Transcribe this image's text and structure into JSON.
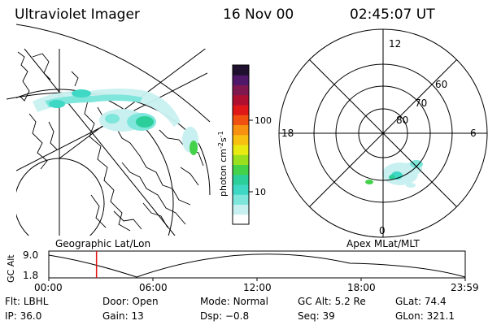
{
  "header": {
    "title": "Ultraviolet Imager",
    "date": "16 Nov 00",
    "time": "02:45:07 UT"
  },
  "colorbar": {
    "label": "photon cm",
    "label_exp1": "-2",
    "label_s": "s",
    "label_exp2": "-1",
    "ticks": [
      {
        "label": "100",
        "value": 100
      },
      {
        "label": "10",
        "value": 10
      }
    ],
    "colors": [
      "#ffffff",
      "#c8f0f0",
      "#7fe6dc",
      "#3fd8c4",
      "#2ccf9a",
      "#44d24a",
      "#9be01e",
      "#e8ea12",
      "#f8c010",
      "#f89010",
      "#f05010",
      "#e01818",
      "#b01030",
      "#801850",
      "#501868",
      "#201030"
    ]
  },
  "geo_map": {
    "caption": "Geographic Lat/Lon"
  },
  "polar_plot": {
    "caption": "Apex MLat/MLT",
    "mlt_labels": {
      "top": "12",
      "left": "18",
      "right": "6",
      "bottom": "0"
    },
    "lat_labels": [
      {
        "label": "60",
        "value": 60
      },
      {
        "label": "70",
        "value": 70
      },
      {
        "label": "80",
        "value": 80
      }
    ]
  },
  "orbit_plot": {
    "ylabel": "GC Alt",
    "yticks": [
      "9.0",
      "1.8"
    ],
    "xticks": [
      "00:00",
      "06:00",
      "12:00",
      "18:00",
      "23:59"
    ],
    "current_time_hours": 2.75,
    "marker_color": "#e01010"
  },
  "info": {
    "row1": [
      {
        "key": "Flt:",
        "value": "LBHL"
      },
      {
        "key": "Door:",
        "value": "Open"
      },
      {
        "key": "Mode:",
        "value": "Normal"
      },
      {
        "key": "GC Alt:",
        "value": "5.2 Re"
      },
      {
        "key": "GLat:",
        "value": "74.4"
      }
    ],
    "row2": [
      {
        "key": "IP:",
        "value": "36.0"
      },
      {
        "key": "Gain:",
        "value": "13"
      },
      {
        "key": "Dsp:",
        "value": "−0.8"
      },
      {
        "key": "Seq:",
        "value": "39"
      },
      {
        "key": "GLon:",
        "value": "321.1"
      }
    ]
  }
}
